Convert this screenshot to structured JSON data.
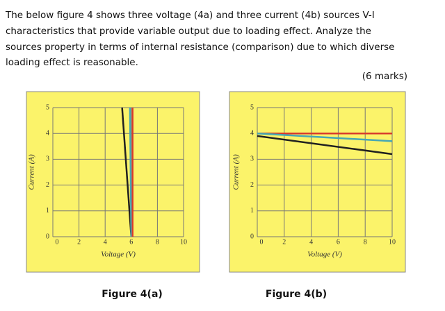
{
  "text": {
    "paragraph": [
      "The below figure 4 shows three voltage (4a) and three current (4b) sources V-I",
      "characteristics that provide variable output due to loading effect. Analyze the",
      "sources property in terms of internal resistance (comparison) due to which diverse",
      "loading effect is reasonable."
    ],
    "marks": "(6 marks)"
  },
  "figures": [
    "Figure  4(a)",
    "Figure  4(b)"
  ],
  "chart_data": [
    {
      "type": "line",
      "x_label": "Voltage (V)",
      "y_label": "Current (A)",
      "xlim": [
        0,
        10
      ],
      "ylim": [
        0,
        5
      ],
      "xticks": [
        0,
        2,
        4,
        6,
        8,
        10
      ],
      "yticks": [
        0,
        1,
        2,
        3,
        4,
        5
      ],
      "grid": true,
      "series": [
        {
          "color": "#202020",
          "x": [
            5.3,
            6
          ],
          "values": [
            5,
            0
          ]
        },
        {
          "color": "#46a7b5",
          "x": [
            5.9,
            6
          ],
          "values": [
            5,
            0
          ]
        },
        {
          "color": "#d83a2c",
          "x": [
            6.1,
            6.1
          ],
          "values": [
            5,
            0
          ]
        }
      ]
    },
    {
      "type": "line",
      "x_label": "Voltage (V)",
      "y_label": "Current (A)",
      "xlim": [
        0,
        10
      ],
      "ylim": [
        0,
        5
      ],
      "xticks": [
        0,
        2,
        4,
        6,
        8,
        10
      ],
      "yticks": [
        0,
        1,
        2,
        3,
        4,
        5
      ],
      "grid": true,
      "series": [
        {
          "color": "#d83a2c",
          "x": [
            0,
            10
          ],
          "values": [
            4,
            4
          ]
        },
        {
          "color": "#46a7b5",
          "x": [
            0,
            10
          ],
          "values": [
            4,
            3.7
          ]
        },
        {
          "color": "#202020",
          "x": [
            0,
            10
          ],
          "values": [
            3.9,
            3.2
          ]
        }
      ]
    }
  ]
}
